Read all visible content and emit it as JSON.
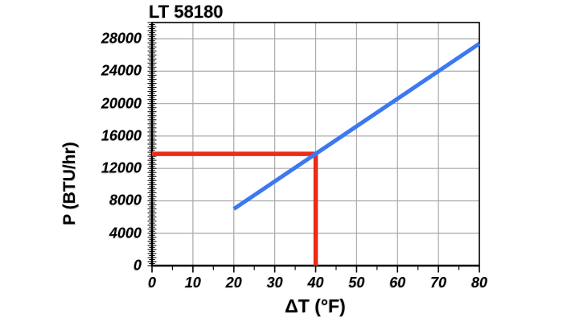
{
  "chart": {
    "title": "LT 58180",
    "xlabel": "ΔT (°F)",
    "ylabel": "P (BTU/hr)"
  },
  "chart_data": {
    "type": "line",
    "title": "LT 58180",
    "xlabel": "ΔT (°F)",
    "ylabel": "P (BTU/hr)",
    "xlim": [
      0,
      80
    ],
    "ylim": [
      0,
      30000
    ],
    "x_ticks": [
      0,
      10,
      20,
      30,
      40,
      50,
      60,
      70,
      80
    ],
    "y_ticks": [
      0,
      4000,
      8000,
      12000,
      16000,
      20000,
      24000,
      28000
    ],
    "x_minor_step": 5,
    "y_minor_step": 250,
    "grid": true,
    "grid_color": "#a8a8a8",
    "axis_color": "#000000",
    "legend": null,
    "series": [
      {
        "name": "reading-guide",
        "color": "#ee2b16",
        "width": 5.5,
        "points": [
          [
            0,
            13800
          ],
          [
            40,
            13800
          ],
          [
            40,
            0
          ]
        ]
      },
      {
        "name": "power-line",
        "color": "#3c78ee",
        "width": 5,
        "points": [
          [
            20,
            7000
          ],
          [
            80,
            27400
          ]
        ]
      }
    ],
    "highlight_point": {
      "x": 40,
      "y": 13800
    }
  }
}
